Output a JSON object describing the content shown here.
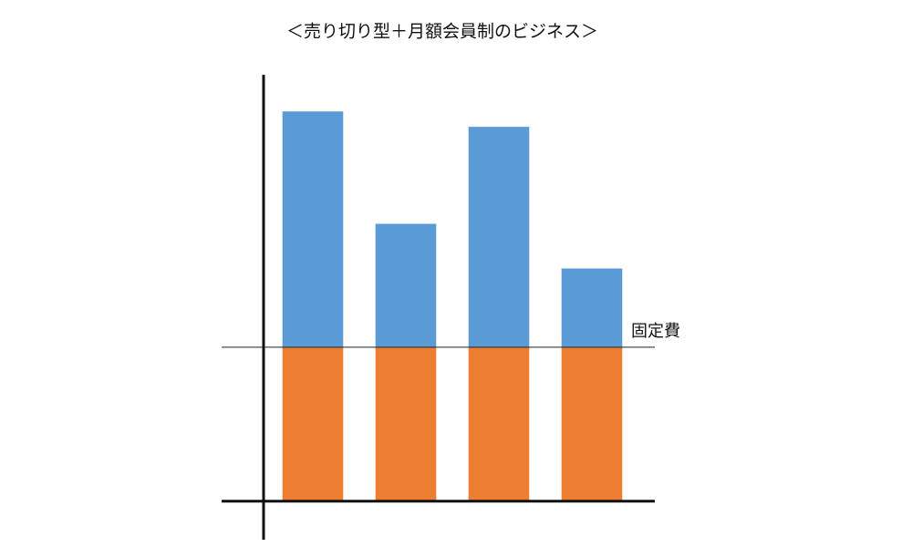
{
  "chart_data": {
    "type": "stacked_bar",
    "title": "＜売り切り型＋月額会員制のビジネス＞",
    "categories": [
      null,
      null,
      null,
      null
    ],
    "series": [
      {
        "color": "#ed7d31",
        "values": [
          100,
          100,
          100,
          100
        ]
      },
      {
        "color": "#5b9bd5",
        "values": [
          153,
          80,
          143,
          51
        ]
      }
    ],
    "reference_line": {
      "value": 100,
      "label": "固定費"
    },
    "ylim": [
      -25,
      277
    ]
  }
}
